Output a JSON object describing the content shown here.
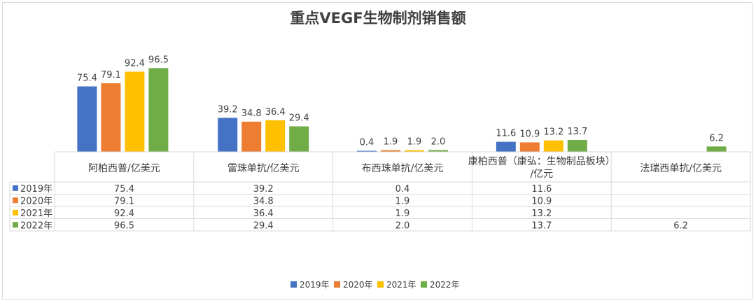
{
  "chart_data": {
    "type": "bar",
    "title": "重点VEGF生物制剂销售额",
    "categories": [
      "阿柏西普/亿美元",
      "雷珠单抗/亿美元",
      "布西珠单抗/亿美元",
      "康柏西普（康弘：生物制品板块）/亿元",
      "法瑞西单抗/亿美元"
    ],
    "series": [
      {
        "name": "2019年",
        "color": "#4472c4",
        "values": [
          75.4,
          39.2,
          0.4,
          11.6,
          null
        ],
        "labels": [
          "75.4",
          "39.2",
          "0.4",
          "11.6",
          ""
        ]
      },
      {
        "name": "2020年",
        "color": "#ed7d31",
        "values": [
          79.1,
          34.8,
          1.9,
          10.9,
          null
        ],
        "labels": [
          "79.1",
          "34.8",
          "1.9",
          "10.9",
          ""
        ]
      },
      {
        "name": "2021年",
        "color": "#ffc000",
        "values": [
          92.4,
          36.4,
          1.9,
          13.2,
          null
        ],
        "labels": [
          "92.4",
          "36.4",
          "1.9",
          "13.2",
          ""
        ]
      },
      {
        "name": "2022年",
        "color": "#70ad47",
        "values": [
          96.5,
          29.4,
          2.0,
          13.7,
          6.2
        ],
        "labels": [
          "96.5",
          "29.4",
          "2.0",
          "13.7",
          "6.2"
        ]
      }
    ],
    "ylim": [
      0,
      100
    ],
    "grid": false,
    "legend": "bottom",
    "data_table": true
  }
}
